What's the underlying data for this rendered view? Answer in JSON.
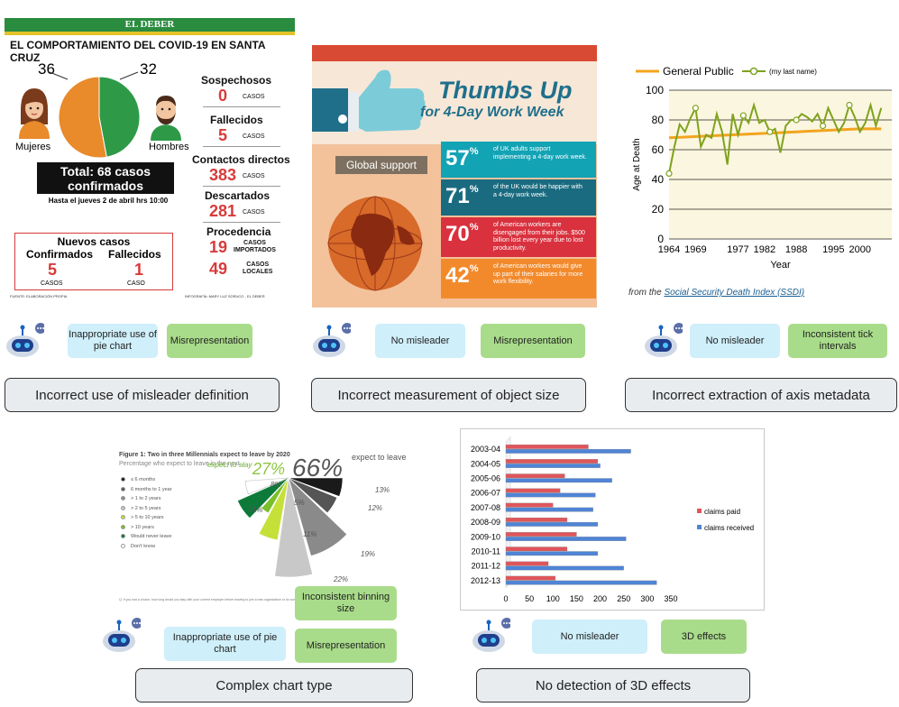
{
  "panel1": {
    "brand": "EL DEBER",
    "title": "EL COMPORTAMIENTO DEL COVID-19 EN SANTA CRUZ",
    "women_count": "36",
    "men_count": "32",
    "women_label": "Mujeres",
    "men_label": "Hombres",
    "total_line1": "Total: 68 casos",
    "total_line2": "confirmados",
    "date_note": "Hasta el jueves 2 de abril hrs 10:00",
    "new_cases": {
      "title": "Nuevos casos",
      "confirmed_label": "Confirmados",
      "confirmed_value": "5",
      "confirmed_unit": "CASOS",
      "deaths_label": "Fallecidos",
      "deaths_value": "1",
      "deaths_unit": "CASO"
    },
    "stats": [
      {
        "label": "Sospechosos",
        "value": "0",
        "unit": "CASOS"
      },
      {
        "label": "Fallecidos",
        "value": "5",
        "unit": "CASOS"
      },
      {
        "label": "Contactos directos",
        "value": "383",
        "unit": "CASOS"
      },
      {
        "label": "Descartados",
        "value": "281",
        "unit": "CASOS"
      }
    ],
    "origin": {
      "label": "Procedencia",
      "imported_value": "19",
      "imported_unit_1": "CASOS",
      "imported_unit_2": "IMPORTADOS",
      "local_value": "49",
      "local_unit_1": "CASOS",
      "local_unit_2": "LOCALES"
    },
    "source": "FUENTE: ELABORACIÓN PROPIA",
    "credit": "INFOGRAFÍA: MARY LUZ SORUCO - EL DEBER",
    "colors": {
      "women": "#e98a2b",
      "men": "#2e9a48",
      "accent": "#d93a3a"
    }
  },
  "panel1_chart": {
    "chart_data": {
      "type": "pie",
      "categories": [
        "Mujeres",
        "Hombres"
      ],
      "values": [
        36,
        32
      ]
    }
  },
  "panel2": {
    "title_line1": "Thumbs Up",
    "title_line2": "for 4-Day Work Week",
    "global_label": "Global support",
    "rows": [
      {
        "pct": "57",
        "desc": "of UK adults support implementing a 4-day work week.",
        "color": "#12a3b5"
      },
      {
        "pct": "71",
        "desc": "of the UK would be happier with a 4-day work week.",
        "color": "#1a6b80"
      },
      {
        "pct": "70",
        "desc": "of American workers are disengaged from their jobs. $500 billion lost every year due to lost productivity.",
        "color": "#d9313e"
      },
      {
        "pct": "42",
        "desc": "of American workers would give up part of their salaries for more work flexibility.",
        "color": "#f28a2c"
      }
    ]
  },
  "panel3": {
    "chart_data": {
      "type": "line",
      "ylabel": "Age at Death",
      "xlabel": "Year",
      "ylim": [
        0,
        100
      ],
      "yticks": [
        0,
        20,
        40,
        60,
        80,
        100
      ],
      "xticks": [
        "1964",
        "1969",
        "1977",
        "1982",
        "1988",
        "1995",
        "2000"
      ],
      "legend": [
        "General Public",
        "(my last name)"
      ],
      "series": [
        {
          "name": "General Public",
          "color": "#f2a51f",
          "x": [
            1964,
            1970,
            1976,
            1982,
            1988,
            1994,
            2000,
            2004
          ],
          "values": [
            68,
            69,
            70,
            71,
            72,
            73,
            74,
            74
          ]
        },
        {
          "name": "(my last name)",
          "color": "#7fa21e",
          "x": [
            1964,
            1965,
            1966,
            1967,
            1968,
            1969,
            1970,
            1971,
            1972,
            1973,
            1974,
            1975,
            1976,
            1977,
            1978,
            1979,
            1980,
            1981,
            1982,
            1983,
            1984,
            1985,
            1986,
            1987,
            1988,
            1989,
            1990,
            1991,
            1992,
            1993,
            1994,
            1995,
            1996,
            1997,
            1998,
            1999,
            2000,
            2001,
            2002,
            2003,
            2004
          ],
          "values": [
            44,
            62,
            77,
            72,
            81,
            88,
            62,
            70,
            68,
            84,
            72,
            50,
            84,
            70,
            83,
            78,
            90,
            78,
            80,
            72,
            74,
            58,
            76,
            80,
            80,
            84,
            82,
            79,
            84,
            76,
            88,
            80,
            72,
            78,
            90,
            82,
            72,
            78,
            90,
            76,
            88
          ]
        }
      ]
    },
    "source_prefix": "from the",
    "source_link": "Social Security Death Index (SSDI)"
  },
  "panel4": {
    "title": "Figure 1: Two in three Millennials expect to leave by 2020",
    "subtitle": "Percentage who expect to leave in the next...",
    "legend": [
      {
        "label": "≤ 6 months",
        "color": "#1a1a1a"
      },
      {
        "label": "6 months to 1 year",
        "color": "#555555"
      },
      {
        "label": "> 1 to 2 years",
        "color": "#8a8a8a"
      },
      {
        "label": "> 2 to 5 years",
        "color": "#c8c8c8"
      },
      {
        "label": "> 5 to 10 years",
        "color": "#c6e03a"
      },
      {
        "label": "> 10 years",
        "color": "#7bbf2a"
      },
      {
        "label": "Would never leave",
        "color": "#0d7a3a"
      },
      {
        "label": "Don't know",
        "color": "#ffffff"
      }
    ],
    "expect_stay_label": "expect to stay",
    "expect_stay_value": "27%",
    "expect_leave_value": "66%",
    "expect_leave_label": "expect to leave",
    "footnote": "Q: If you had a choice, how long would you stay with your current employer before leaving to join a new organization or do something different?",
    "chart_data": {
      "type": "pie",
      "categories": [
        "≤ 6 months",
        "6 months to 1 year",
        "> 1 to 2 years",
        "> 2 to 5 years",
        "> 5 to 10 years",
        "> 10 years",
        "Would never leave",
        "Don't know"
      ],
      "values": [
        13,
        12,
        19,
        22,
        11,
        5,
        11,
        8
      ],
      "labels": [
        "13%",
        "12%",
        "19%",
        "22%",
        "11%",
        "5%",
        "11%",
        "8%"
      ]
    }
  },
  "panel5": {
    "chart_data": {
      "type": "bar",
      "categories": [
        "2003-04",
        "2004-05",
        "2005-06",
        "2006-07",
        "2007-08",
        "2008-09",
        "2009-10",
        "2010-11",
        "2011-12",
        "2012-13"
      ],
      "series": [
        {
          "name": "claims paid",
          "color": "#e0555a",
          "values": [
            175,
            195,
            125,
            115,
            100,
            130,
            150,
            130,
            90,
            105
          ]
        },
        {
          "name": "claims received",
          "color": "#4f84d6",
          "values": [
            265,
            200,
            225,
            190,
            185,
            195,
            255,
            195,
            250,
            320
          ]
        }
      ],
      "xlim": [
        0,
        350
      ],
      "xticks": [
        0,
        50,
        100,
        150,
        200,
        250,
        300,
        350
      ]
    }
  },
  "annotations": [
    {
      "left_tag": "Inappropriate use of pie chart",
      "right_tag": "Misrepresentation",
      "caption": "Incorrect use of misleader definition"
    },
    {
      "left_tag": "No misleader",
      "right_tag": "Misrepresentation",
      "caption": "Incorrect measurement of object size"
    },
    {
      "left_tag": "No misleader",
      "right_tag": "Inconsistent tick intervals",
      "caption": "Incorrect extraction of axis metadata"
    },
    {
      "left_tag": "Inappropriate use of pie chart",
      "right_tag_top": "Inconsistent binning size",
      "right_tag": "Misrepresentation",
      "caption": "Complex chart type"
    },
    {
      "left_tag": "No misleader",
      "right_tag": "3D effects",
      "caption": "No detection of 3D effects"
    }
  ]
}
